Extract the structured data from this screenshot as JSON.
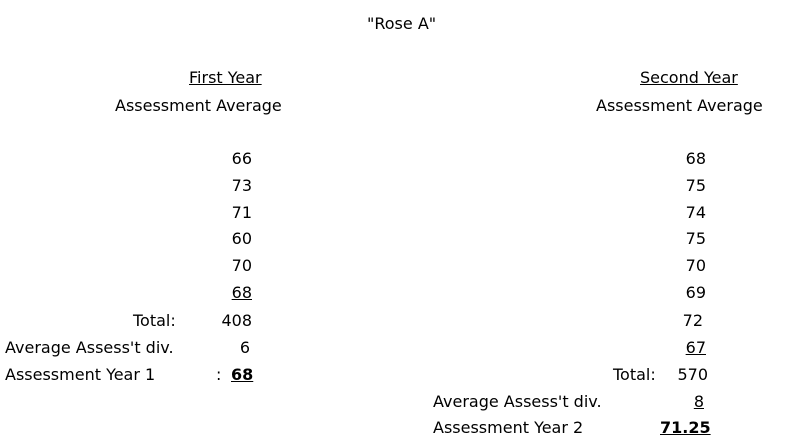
{
  "title": "\"Rose A\"",
  "first_year": {
    "heading": "First Year",
    "subheading": "Assessment Average",
    "scores": [
      "66",
      "73",
      "71",
      "60",
      "70",
      "68"
    ],
    "total_label": "Total:",
    "total_value": "408",
    "div_label": "Average Assess't div.",
    "div_value": "6",
    "result_label": "Assessment Year 1",
    "result_colon": ":",
    "result_value": "68"
  },
  "second_year": {
    "heading": "Second Year",
    "subheading": "Assessment Average",
    "scores": [
      "68",
      "75",
      "74",
      "75",
      "70",
      "69",
      "72",
      "67"
    ],
    "total_label": "Total:",
    "total_value": "570",
    "div_label": "Average Assess't div.",
    "div_value": "8",
    "result_label": "Assessment Year 2",
    "result_value": "71.25"
  }
}
